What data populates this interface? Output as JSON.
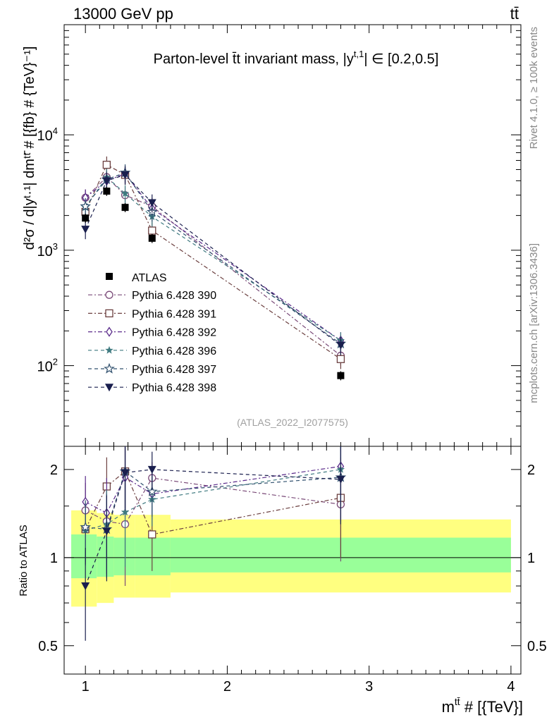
{
  "header": {
    "left": "13000 GeV pp",
    "right": "tt̄"
  },
  "side": {
    "rivet": "Rivet 4.1.0, ≥ 100k events",
    "mcplots": "mcplots.cern.ch [arXiv:1306.3436]"
  },
  "chart_data": {
    "type": "scatter",
    "title": "Parton-level t̄t invariant mass, |y^{t,1}| ∈ [0.2,0.5]",
    "title_main": "Parton-level t̄t invariant mass, |y",
    "title_sup": "t,1",
    "title_tail": "| ∈ [0.2,0.5]",
    "analysis": "(ATLAS_2022_I2077575)",
    "xlabel": "m^{tt̄} # [{TeV}]",
    "xlabel_main": "m",
    "xlabel_sup": "tt̄",
    "xlabel_tail": " # [{TeV}]",
    "ylabel_main": "d²σ / d|yᵗ·¹| dmᵗᵗ̄ # [{fb} # {TeV}⁻¹]",
    "ylabel_ratio": "Ratio to ATLAS",
    "xlim": [
      0.85,
      4.07
    ],
    "ylim_main": [
      20,
      90000
    ],
    "ylim_ratio": [
      0.4,
      2.4
    ],
    "x_ticks": [
      "1",
      "2",
      "3",
      "4"
    ],
    "x_tick_values": [
      1,
      2,
      3,
      4
    ],
    "y_ticks_main": [
      "10^2",
      "10^3",
      "10^4"
    ],
    "y_tick_values_main": [
      100,
      1000,
      10000
    ],
    "y_ticks_ratio": [
      "0.5",
      "1",
      "2"
    ],
    "y_tick_values_ratio": [
      0.5,
      1,
      2
    ],
    "bins": [
      [
        0.9,
        1.08
      ],
      [
        1.08,
        1.2
      ],
      [
        1.2,
        1.35
      ],
      [
        1.35,
        1.6
      ],
      [
        1.6,
        4.0
      ]
    ],
    "x": [
      1.0,
      1.15,
      1.28,
      1.47,
      2.8
    ],
    "data": {
      "name": "ATLAS",
      "values": [
        1900,
        3250,
        2350,
        1270,
        82
      ],
      "band_inner": [
        [
          0.85,
          1.2
        ],
        [
          0.86,
          1.18
        ],
        [
          0.87,
          1.17
        ],
        [
          0.87,
          1.17
        ],
        [
          0.89,
          1.17
        ]
      ],
      "band_outer": [
        [
          0.68,
          1.45
        ],
        [
          0.7,
          1.42
        ],
        [
          0.73,
          1.4
        ],
        [
          0.73,
          1.4
        ],
        [
          0.76,
          1.35
        ]
      ]
    },
    "series": [
      {
        "name": "Pythia 6.428 390",
        "color": "#7a4a78",
        "marker": "circle-open",
        "dash": "6,3,2,3",
        "values": [
          2850,
          4300,
          3000,
          2400,
          122
        ],
        "ratio": [
          1.45,
          1.33,
          1.3,
          1.87,
          1.52
        ],
        "ratio_err": [
          0.35,
          0.45,
          0.5,
          0.25,
          0.55
        ]
      },
      {
        "name": "Pythia 6.428 391",
        "color": "#6b3f3f",
        "marker": "square-open",
        "dash": "6,3,2,3",
        "values": [
          2150,
          5500,
          4500,
          1480,
          114
        ],
        "ratio": [
          1.25,
          1.75,
          1.97,
          1.2,
          1.6
        ],
        "ratio_err": [
          0.3,
          0.45,
          0.5,
          0.3,
          0.6
        ]
      },
      {
        "name": "Pythia 6.428 392",
        "color": "#5a2a8a",
        "marker": "diamond-open",
        "dash": "6,3,2,3",
        "values": [
          2850,
          4000,
          4600,
          2300,
          165
        ],
        "ratio": [
          1.55,
          1.42,
          1.88,
          1.65,
          2.05
        ],
        "ratio_err": [
          0.35,
          0.45,
          0.5,
          0.3,
          0.55
        ]
      },
      {
        "name": "Pythia 6.428 396",
        "color": "#3f7a80",
        "marker": "star-filled",
        "dash": "5,4",
        "values": [
          2350,
          4300,
          3100,
          1950,
          165
        ],
        "ratio": [
          1.24,
          1.3,
          1.43,
          1.58,
          2.0
        ],
        "ratio_err": [
          0.3,
          0.4,
          0.5,
          0.3,
          0.55
        ]
      },
      {
        "name": "Pythia 6.428 397",
        "color": "#30506e",
        "marker": "star-open",
        "dash": "5,4",
        "values": [
          2400,
          4100,
          4700,
          2150,
          155
        ],
        "ratio": [
          1.27,
          1.25,
          1.97,
          1.68,
          1.88
        ],
        "ratio_err": [
          0.3,
          0.4,
          0.5,
          0.3,
          0.55
        ]
      },
      {
        "name": "Pythia 6.428 398",
        "color": "#1a1f4e",
        "marker": "triangle-down-filled",
        "dash": "5,4",
        "values": [
          1520,
          4000,
          4500,
          2580,
          150
        ],
        "ratio": [
          0.8,
          1.23,
          1.95,
          2.0,
          1.85
        ],
        "ratio_err": [
          0.28,
          0.4,
          0.5,
          0.3,
          0.55
        ]
      }
    ]
  }
}
